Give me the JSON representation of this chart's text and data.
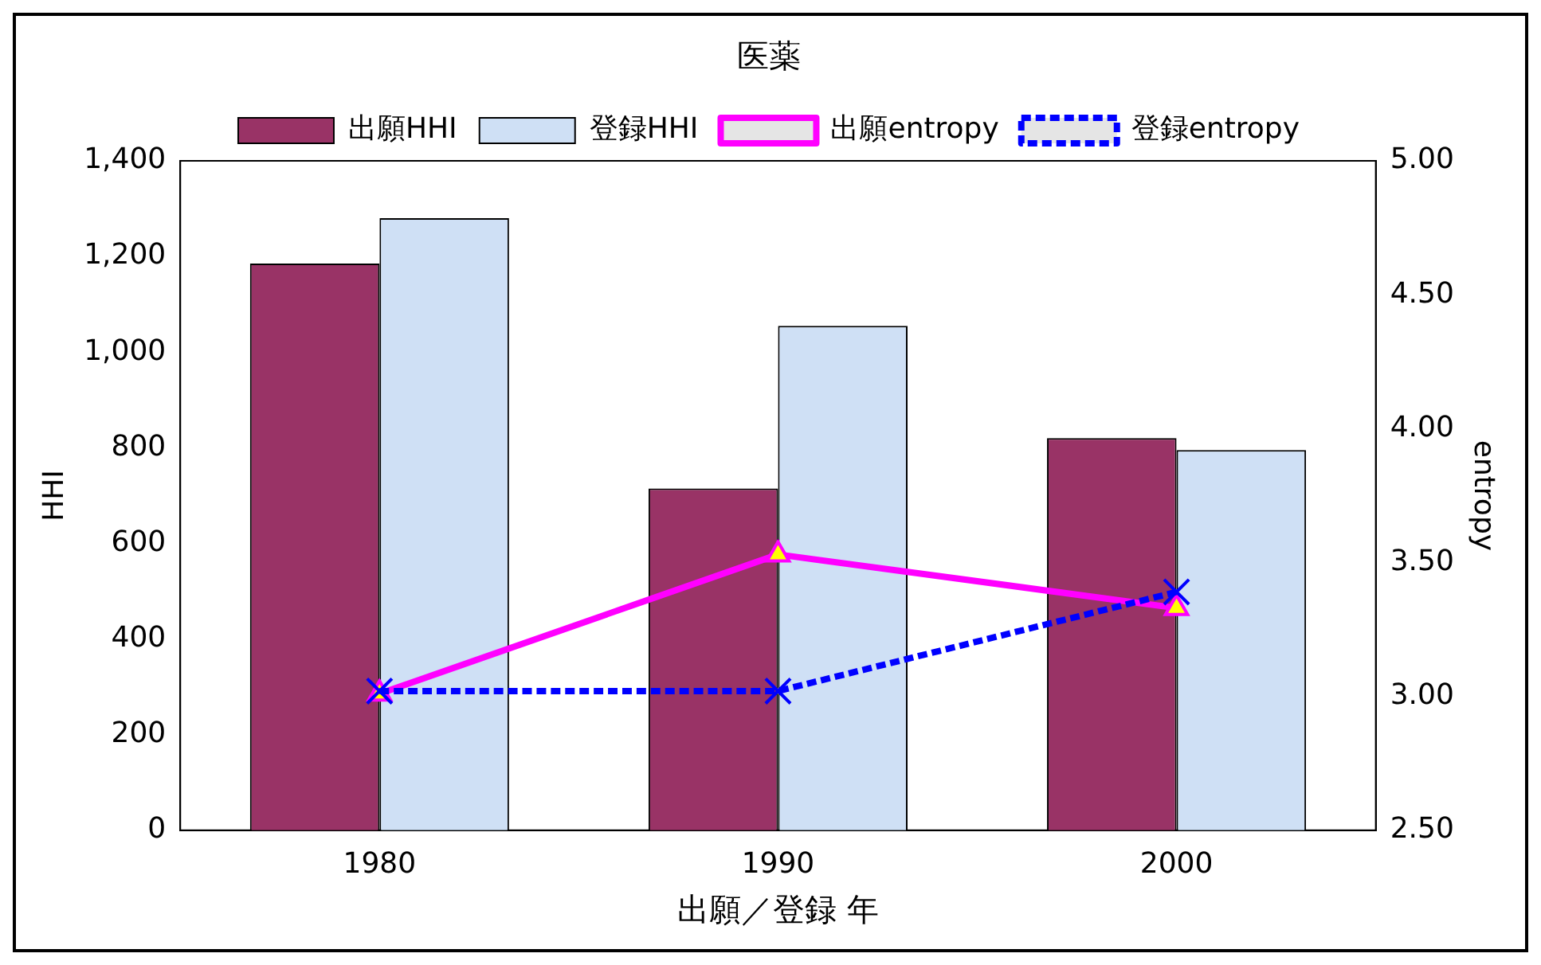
{
  "chart_data": {
    "type": "bar",
    "title": "医薬",
    "xlabel": "出願／登録 年",
    "ylabel": "HHI",
    "y2label": "entropy",
    "categories": [
      "1980",
      "1990",
      "2000"
    ],
    "series": [
      {
        "name": "出願HHI",
        "color": "#993366",
        "values": [
          1185,
          715,
          820
        ]
      },
      {
        "name": "登録HHI",
        "color": "#cfe0f5",
        "values": [
          1280,
          1055,
          795
        ]
      },
      {
        "name": "出願entropy",
        "type": "line",
        "axis": "y2",
        "color": "#ff00ff",
        "marker": "triangle",
        "line_style": "solid",
        "values": [
          3.01,
          3.53,
          3.33
        ]
      },
      {
        "name": "登録entropy",
        "type": "line",
        "axis": "y2",
        "color": "#0000ff",
        "marker": "cross",
        "line_style": "dashed",
        "values": [
          3.02,
          3.02,
          3.39
        ]
      }
    ],
    "ylim": [
      0,
      1400
    ],
    "yticks": [
      0,
      200,
      400,
      600,
      800,
      {
        "value": 1000,
        "label": "1,000"
      },
      {
        "value": 1200,
        "label": "1,200"
      },
      {
        "value": 1400,
        "label": "1,400"
      }
    ],
    "y2lim": [
      2.5,
      5
    ],
    "y2ticks": [
      {
        "value": 2.5,
        "label": "2.50"
      },
      {
        "value": 3,
        "label": "3.00"
      },
      {
        "value": 3.5,
        "label": "3.50"
      },
      {
        "value": 4,
        "label": "4.00"
      },
      {
        "value": 4.5,
        "label": "4.50"
      },
      {
        "value": 5,
        "label": "5.00"
      }
    ],
    "grid": false,
    "legend": "top"
  }
}
